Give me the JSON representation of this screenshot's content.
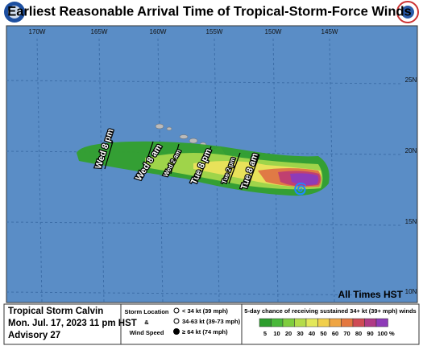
{
  "header": {
    "title": "Earliest Reasonable Arrival Time of Tropical-Storm-Force Winds"
  },
  "map": {
    "lon_labels": [
      "170W",
      "165W",
      "160W",
      "155W",
      "150W",
      "145W"
    ],
    "lat_labels": [
      "25N",
      "20N",
      "15N",
      "10N"
    ],
    "time_labels": [
      "Wed 8 pm",
      "Wed 8 am",
      "Wed 2 am",
      "Tue 8 pm",
      "Tue 2 pm",
      "Tue 8 am"
    ],
    "note": "All Times  HST"
  },
  "footer": {
    "storm_name": "Tropical Storm Calvin",
    "date": "Mon. Jul. 17, 2023  11 pm HST",
    "advisory": "Advisory 27",
    "legend": {
      "location": "Storm Location",
      "amp": "&",
      "wind": "Wind Speed",
      "items": [
        "< 34 kt (39 mph)",
        "34-63 kt (39-73 mph)",
        "≥ 64 kt (74 mph)"
      ]
    },
    "colorbar": {
      "title": "5-day chance of receiving sustained 34+ kt (39+ mph) winds",
      "labels": [
        "5",
        "10",
        "20",
        "30",
        "40",
        "50",
        "60",
        "70",
        "80",
        "90",
        "100 %"
      ],
      "colors": [
        "#2e9e2e",
        "#49b83a",
        "#7fcd3f",
        "#b4dc4a",
        "#e3e85a",
        "#f1cf4b",
        "#efa543",
        "#e4783f",
        "#cf4b55",
        "#b03a86",
        "#8e3bb8"
      ]
    }
  }
}
